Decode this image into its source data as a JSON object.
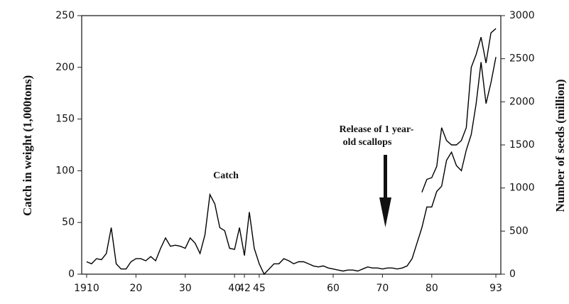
{
  "chart_data": {
    "type": "line",
    "ylabel": "Catch in weight (1,000tons)",
    "y2label": "Number of seeds (million)",
    "annotations": [
      "Release of 1 year-",
      "old scallops"
    ],
    "x": [
      1910,
      1911,
      1912,
      1913,
      1914,
      1915,
      1916,
      1917,
      1918,
      1919,
      1920,
      1921,
      1922,
      1923,
      1924,
      1925,
      1926,
      1927,
      1928,
      1929,
      1930,
      1931,
      1932,
      1933,
      1934,
      1935,
      1936,
      1937,
      1938,
      1939,
      1940,
      1941,
      1942,
      1943,
      1944,
      1945,
      1946,
      1947,
      1948,
      1949,
      1950,
      1951,
      1952,
      1953,
      1954,
      1955,
      1956,
      1957,
      1958,
      1959,
      1960,
      1961,
      1962,
      1963,
      1964,
      1965,
      1966,
      1967,
      1968,
      1969,
      1970,
      1971,
      1972,
      1973,
      1974,
      1975,
      1976,
      1977,
      1978,
      1979,
      1980,
      1981,
      1982,
      1983,
      1984,
      1985,
      1986,
      1987,
      1988,
      1989,
      1990,
      1991,
      1992,
      1993
    ],
    "series": [
      {
        "name": "Catch",
        "color": "#000000",
        "values": [
          12,
          10,
          15,
          14,
          20,
          45,
          10,
          5,
          5,
          12,
          15,
          15,
          13,
          17,
          13,
          25,
          35,
          27,
          28,
          27,
          25,
          35,
          30,
          20,
          38,
          77,
          68,
          45,
          42,
          25,
          24,
          45,
          18,
          60,
          25,
          10,
          0,
          5,
          10,
          10,
          15,
          13,
          10,
          12,
          12,
          10,
          8,
          7,
          8,
          6,
          5,
          4,
          3,
          4,
          4,
          3,
          5,
          7,
          6,
          6,
          5,
          6,
          6,
          5,
          6,
          8,
          15,
          30,
          45,
          65,
          65,
          80,
          85,
          110,
          118,
          105,
          100,
          120,
          135,
          165,
          205,
          165,
          185,
          210
        ]
      },
      {
        "color": "#000000",
        "axis": "y2",
        "values": [
          null,
          null,
          null,
          null,
          null,
          null,
          null,
          null,
          null,
          null,
          null,
          null,
          null,
          null,
          null,
          null,
          null,
          null,
          null,
          null,
          null,
          null,
          null,
          null,
          null,
          null,
          null,
          null,
          null,
          null,
          null,
          null,
          null,
          null,
          null,
          null,
          null,
          null,
          null,
          null,
          null,
          null,
          null,
          null,
          null,
          null,
          null,
          null,
          null,
          null,
          null,
          null,
          null,
          null,
          null,
          null,
          null,
          null,
          null,
          null,
          null,
          null,
          null,
          null,
          null,
          null,
          null,
          null,
          950,
          1100,
          1120,
          1250,
          1700,
          1550,
          1500,
          1500,
          1550,
          1700,
          2400,
          2550,
          2750,
          2450,
          2800,
          2850
        ]
      }
    ],
    "xlim": [
      1909,
      1994
    ],
    "xticks": [
      {
        "value": 1910,
        "label": "1910"
      },
      {
        "value": 1920,
        "label": "20"
      },
      {
        "value": 1930,
        "label": "30"
      },
      {
        "value": 1940,
        "label": "40"
      },
      {
        "value": 1942,
        "label": "42"
      },
      {
        "value": 1945,
        "label": "45"
      },
      {
        "value": 1960,
        "label": "60"
      },
      {
        "value": 1970,
        "label": "70"
      },
      {
        "value": 1980,
        "label": "80"
      },
      {
        "value": 1993,
        "label": "93"
      }
    ],
    "ylim": [
      0,
      250
    ],
    "yticks": [
      0,
      50,
      100,
      150,
      200,
      250
    ],
    "y2lim": [
      0,
      3000
    ],
    "y2ticks": [
      0,
      500,
      1000,
      1500,
      2000,
      2500,
      3000
    ]
  }
}
